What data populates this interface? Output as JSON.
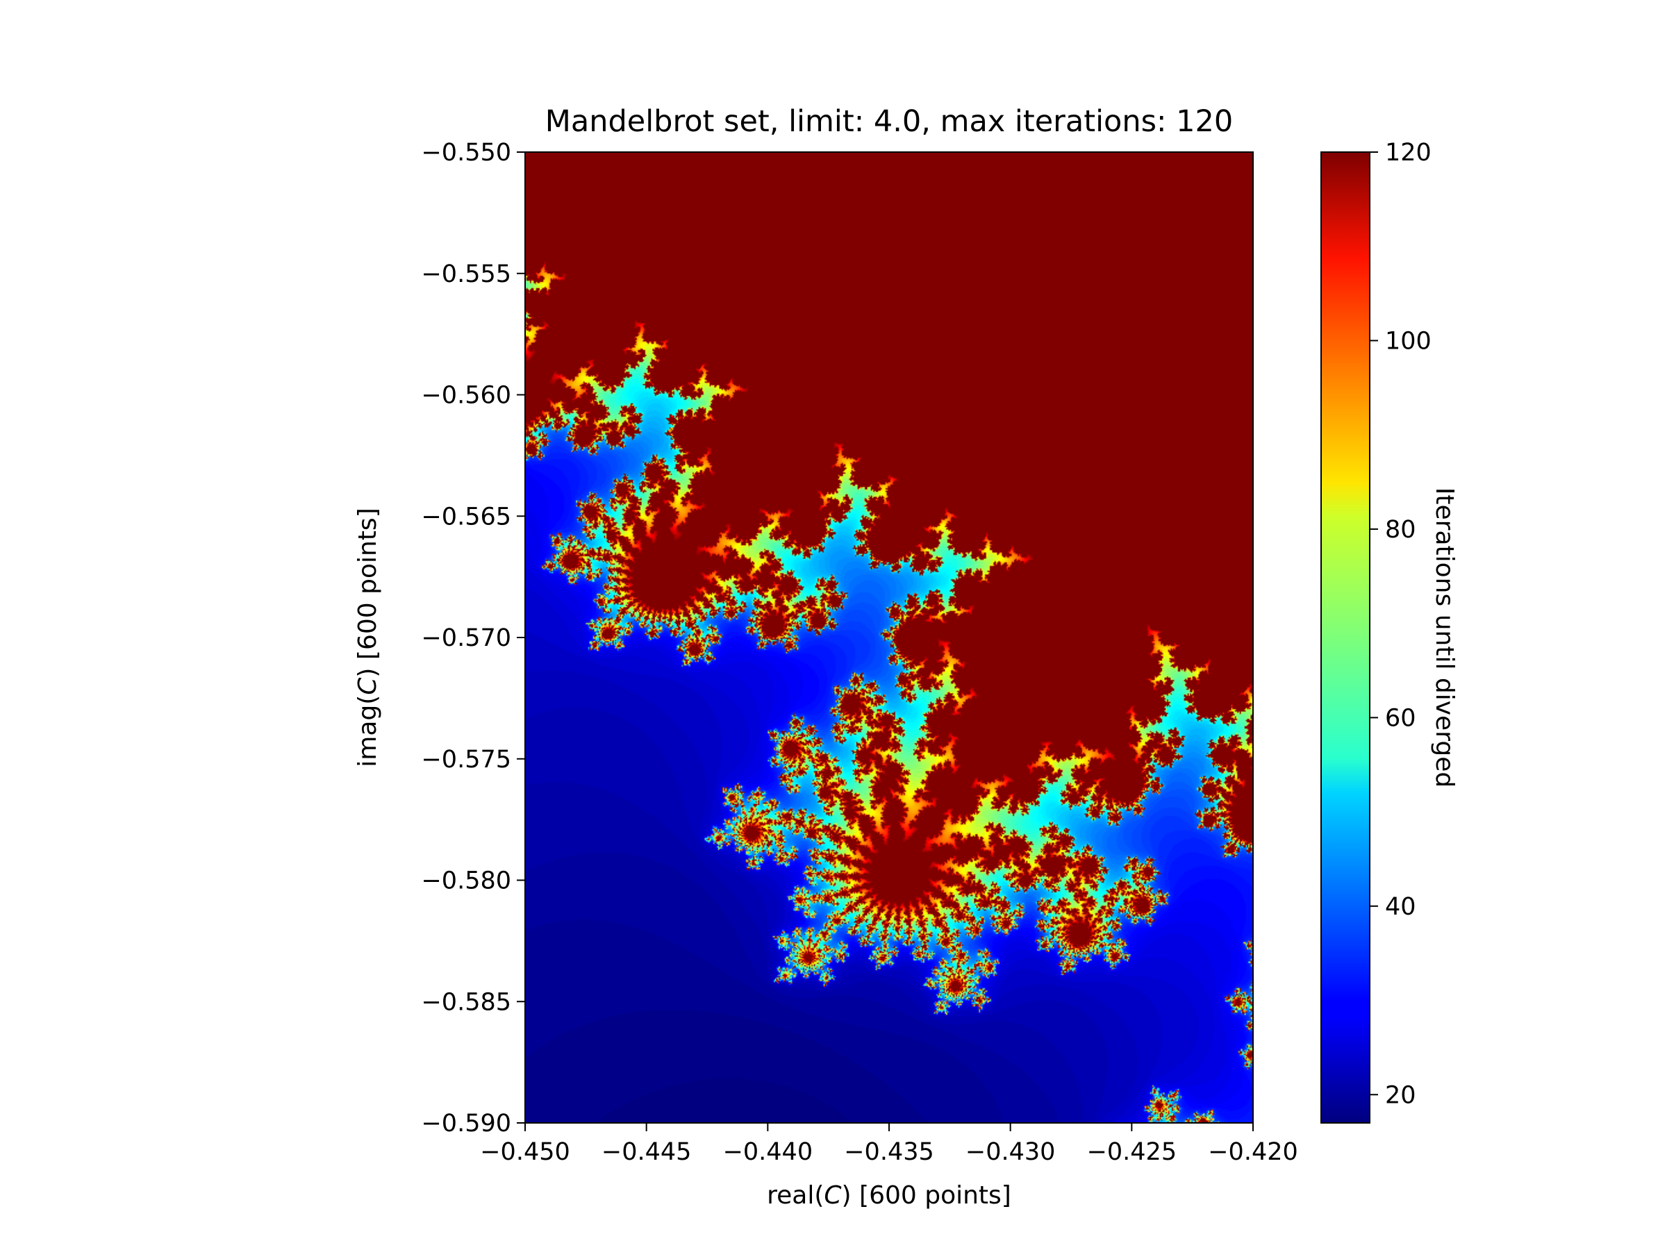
{
  "chart_data": {
    "type": "heatmap",
    "title": "Mandelbrot set, limit: 4.0, max iterations: 120",
    "xlabel": "real(C) [600 points]",
    "ylabel": "imag(C) [600 points]",
    "xlim": [
      -0.45,
      -0.42
    ],
    "ylim": [
      -0.59,
      -0.55
    ],
    "limit": 4.0,
    "max_iterations": 120,
    "points": 600,
    "colormap": "jet",
    "x_ticks": [
      "−0.450",
      "−0.445",
      "−0.440",
      "−0.435",
      "−0.430",
      "−0.425",
      "−0.420"
    ],
    "y_ticks": [
      "−0.550",
      "−0.555",
      "−0.560",
      "−0.565",
      "−0.570",
      "−0.575",
      "−0.580",
      "−0.585",
      "−0.590"
    ],
    "colorbar": {
      "label": "Iterations until diverged",
      "range": [
        17,
        120
      ],
      "ticks": [
        "20",
        "40",
        "60",
        "80",
        "100",
        "120"
      ]
    }
  }
}
